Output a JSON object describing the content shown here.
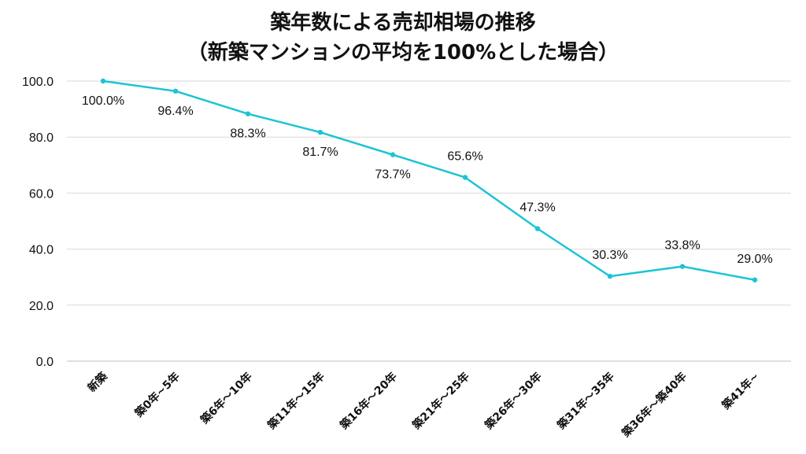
{
  "chart_data": {
    "type": "line",
    "title": "築年数による売却相場の推移",
    "subtitle": "（新築マンションの平均を100%とした場合）",
    "categories": [
      "新築",
      "築0年~5年",
      "築6年～10年",
      "築11年～15年",
      "築16年～20年",
      "築21年～25年",
      "築26年～30年",
      "築31年～35年",
      "築36年～築40年",
      "築41年~"
    ],
    "series": [
      {
        "values": [
          100.0,
          96.4,
          88.3,
          81.7,
          73.7,
          65.6,
          47.3,
          30.3,
          33.8,
          29.0
        ],
        "labels": [
          "100.0%",
          "96.4%",
          "88.3%",
          "81.7%",
          "73.7%",
          "65.6%",
          "47.3%",
          "30.3%",
          "33.8%",
          "29.0%"
        ],
        "color": "#1cc4d4"
      }
    ],
    "yticks": [
      0.0,
      20.0,
      40.0,
      60.0,
      80.0,
      100.0
    ],
    "ytick_labels": [
      "0.0",
      "20.0",
      "40.0",
      "60.0",
      "80.0",
      "100.0"
    ],
    "ylim": [
      0,
      100
    ],
    "grid": true,
    "legend": "none"
  }
}
